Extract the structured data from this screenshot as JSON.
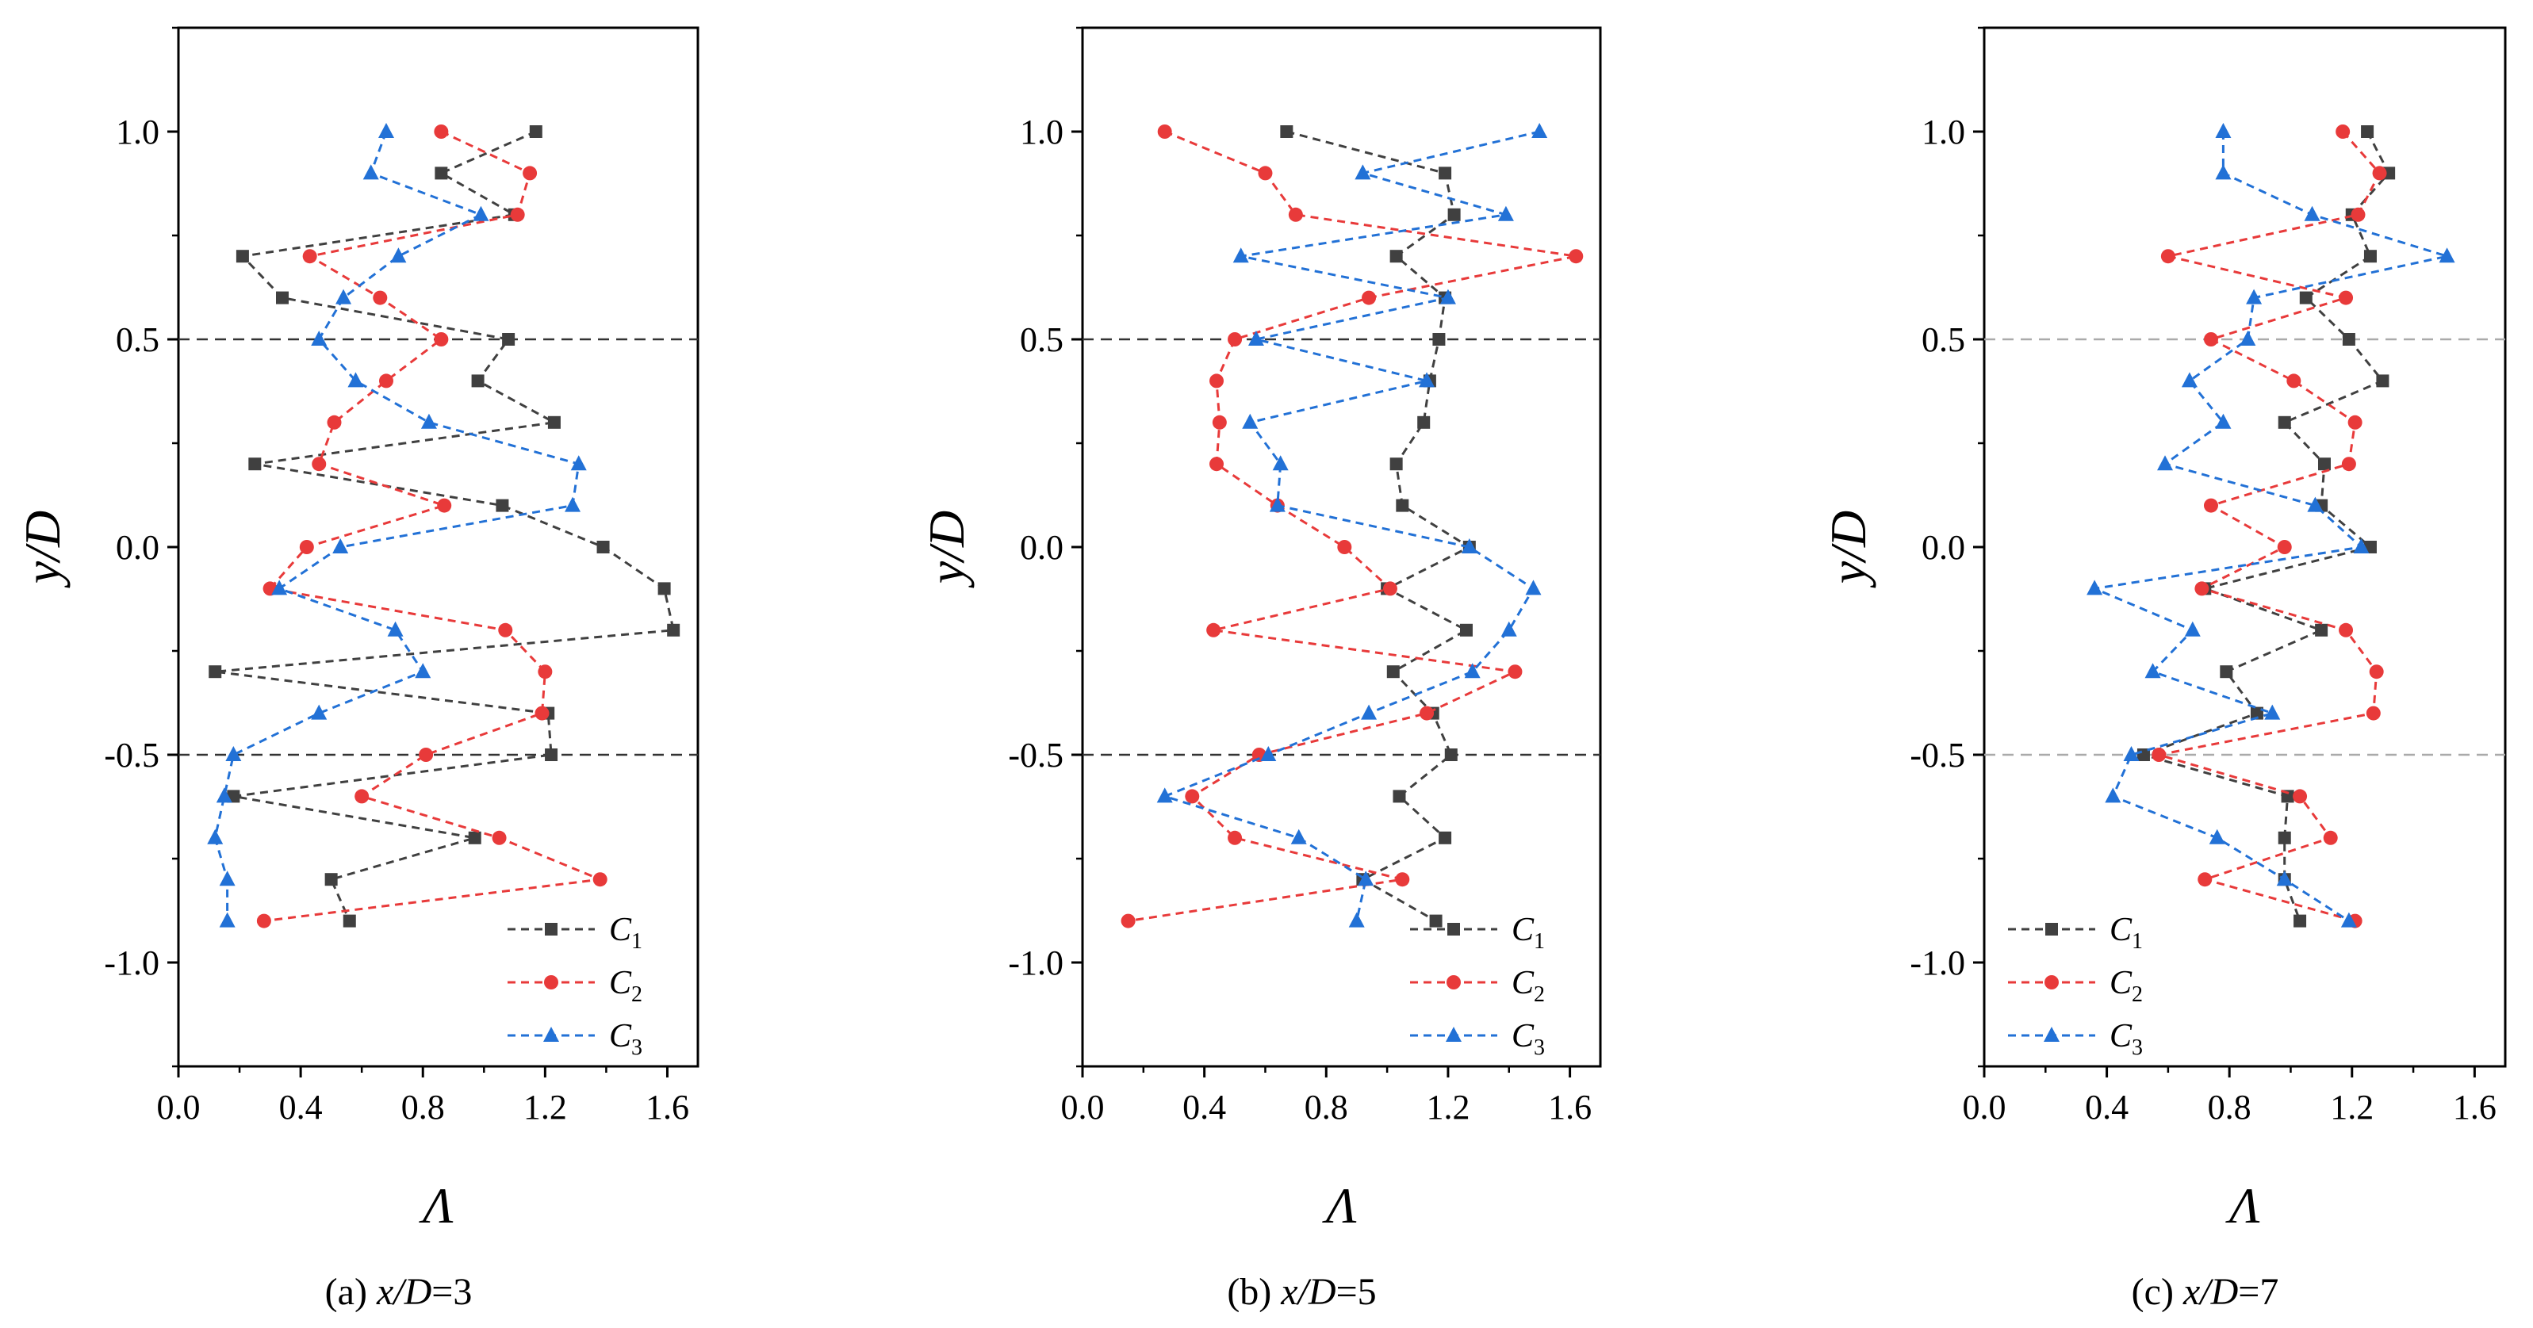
{
  "chart_data": [
    {
      "type": "line",
      "caption": "(a)  x/D=3",
      "caption_prefix": "(a)  ",
      "caption_var": "x/D",
      "caption_val": "=3",
      "xlabel": "Λ",
      "ylabel": "y/D",
      "xlim": [
        0.0,
        1.7
      ],
      "ylim": [
        -1.25,
        1.25
      ],
      "xticks": [
        "0.0",
        "0.4",
        "0.8",
        "1.2",
        "1.6"
      ],
      "yticks": [
        "1.0",
        "0.5",
        "0.0",
        "-0.5",
        "-1.0"
      ],
      "ref_lines": [
        0.5,
        -0.5
      ],
      "ref_line_color": "#333333",
      "legend_position": "bottom-right",
      "y": [
        1.0,
        0.9,
        0.8,
        0.7,
        0.6,
        0.5,
        0.4,
        0.3,
        0.2,
        0.1,
        0.0,
        -0.1,
        -0.2,
        -0.3,
        -0.4,
        -0.5,
        -0.6,
        -0.7,
        -0.8,
        -0.9
      ],
      "series": [
        {
          "name": "C1",
          "letter": "C",
          "sub": "1",
          "color": "#404040",
          "marker": "square",
          "x": [
            1.17,
            0.86,
            1.1,
            0.21,
            0.34,
            1.08,
            0.98,
            1.23,
            0.25,
            1.06,
            1.39,
            1.59,
            1.62,
            0.12,
            1.21,
            1.22,
            0.18,
            0.97,
            0.5,
            0.56
          ]
        },
        {
          "name": "C2",
          "letter": "C",
          "sub": "2",
          "color": "#e83a3a",
          "marker": "circle",
          "x": [
            0.86,
            1.15,
            1.11,
            0.43,
            0.66,
            0.86,
            0.68,
            0.51,
            0.46,
            0.87,
            0.42,
            0.3,
            1.07,
            1.2,
            1.19,
            0.81,
            0.6,
            1.05,
            1.38,
            0.28
          ]
        },
        {
          "name": "C3",
          "letter": "C",
          "sub": "3",
          "color": "#2271d6",
          "marker": "triangle",
          "x": [
            0.68,
            0.63,
            0.99,
            0.72,
            0.54,
            0.46,
            0.58,
            0.82,
            1.31,
            1.29,
            0.53,
            0.33,
            0.71,
            0.8,
            0.46,
            0.18,
            0.15,
            0.12,
            0.16,
            0.16
          ]
        }
      ]
    },
    {
      "type": "line",
      "caption": "(b)  x/D=5",
      "caption_prefix": "(b)  ",
      "caption_var": "x/D",
      "caption_val": "=5",
      "xlabel": "Λ",
      "ylabel": "y/D",
      "xlim": [
        0.0,
        1.7
      ],
      "ylim": [
        -1.25,
        1.25
      ],
      "xticks": [
        "0.0",
        "0.4",
        "0.8",
        "1.2",
        "1.6"
      ],
      "yticks": [
        "1.0",
        "0.5",
        "0.0",
        "-0.5",
        "-1.0"
      ],
      "ref_lines": [
        0.5,
        -0.5
      ],
      "ref_line_color": "#333333",
      "legend_position": "bottom-right",
      "y": [
        1.0,
        0.9,
        0.8,
        0.7,
        0.6,
        0.5,
        0.4,
        0.3,
        0.2,
        0.1,
        0.0,
        -0.1,
        -0.2,
        -0.3,
        -0.4,
        -0.5,
        -0.6,
        -0.7,
        -0.8,
        -0.9
      ],
      "series": [
        {
          "name": "C1",
          "letter": "C",
          "sub": "1",
          "color": "#404040",
          "marker": "square",
          "x": [
            0.67,
            1.19,
            1.22,
            1.03,
            1.19,
            1.17,
            1.14,
            1.12,
            1.03,
            1.05,
            1.27,
            1.0,
            1.26,
            1.02,
            1.15,
            1.21,
            1.04,
            1.19,
            0.92,
            1.16
          ]
        },
        {
          "name": "C2",
          "letter": "C",
          "sub": "2",
          "color": "#e83a3a",
          "marker": "circle",
          "x": [
            0.27,
            0.6,
            0.7,
            1.62,
            0.94,
            0.5,
            0.44,
            0.45,
            0.44,
            0.64,
            0.86,
            1.01,
            0.43,
            1.42,
            1.13,
            0.58,
            0.36,
            0.5,
            1.05,
            0.15
          ]
        },
        {
          "name": "C3",
          "letter": "C",
          "sub": "3",
          "color": "#2271d6",
          "marker": "triangle",
          "x": [
            1.5,
            0.92,
            1.39,
            0.52,
            1.2,
            0.57,
            1.13,
            0.55,
            0.65,
            0.64,
            1.27,
            1.48,
            1.4,
            1.28,
            0.94,
            0.61,
            0.27,
            0.71,
            0.93,
            0.9
          ]
        }
      ]
    },
    {
      "type": "line",
      "caption": "(c)  x/D=7",
      "caption_prefix": "(c)  ",
      "caption_var": "x/D",
      "caption_val": "=7",
      "xlabel": "Λ",
      "ylabel": "y/D",
      "xlim": [
        0.0,
        1.7
      ],
      "ylim": [
        -1.25,
        1.25
      ],
      "xticks": [
        "0.0",
        "0.4",
        "0.8",
        "1.2",
        "1.6"
      ],
      "yticks": [
        "1.0",
        "0.5",
        "0.0",
        "-0.5",
        "-1.0"
      ],
      "ref_lines": [
        0.5,
        -0.5
      ],
      "ref_line_color": "#aaaaaa",
      "legend_position": "bottom-left",
      "y": [
        1.0,
        0.9,
        0.8,
        0.7,
        0.6,
        0.5,
        0.4,
        0.3,
        0.2,
        0.1,
        0.0,
        -0.1,
        -0.2,
        -0.3,
        -0.4,
        -0.5,
        -0.6,
        -0.7,
        -0.8,
        -0.9
      ],
      "series": [
        {
          "name": "C1",
          "letter": "C",
          "sub": "1",
          "color": "#404040",
          "marker": "square",
          "x": [
            1.25,
            1.32,
            1.2,
            1.26,
            1.05,
            1.19,
            1.3,
            0.98,
            1.11,
            1.1,
            1.26,
            0.72,
            1.1,
            0.79,
            0.89,
            0.52,
            0.99,
            0.98,
            0.98,
            1.03
          ]
        },
        {
          "name": "C2",
          "letter": "C",
          "sub": "2",
          "color": "#e83a3a",
          "marker": "circle",
          "x": [
            1.17,
            1.29,
            1.22,
            0.6,
            1.18,
            0.74,
            1.01,
            1.21,
            1.19,
            0.74,
            0.98,
            0.71,
            1.18,
            1.28,
            1.27,
            0.57,
            1.03,
            1.13,
            0.72,
            1.21
          ]
        },
        {
          "name": "C3",
          "letter": "C",
          "sub": "3",
          "color": "#2271d6",
          "marker": "triangle",
          "x": [
            0.78,
            0.78,
            1.07,
            1.51,
            0.88,
            0.86,
            0.67,
            0.78,
            0.59,
            1.08,
            1.23,
            0.36,
            0.68,
            0.55,
            0.94,
            0.48,
            0.42,
            0.76,
            0.98,
            1.19
          ]
        }
      ]
    }
  ]
}
